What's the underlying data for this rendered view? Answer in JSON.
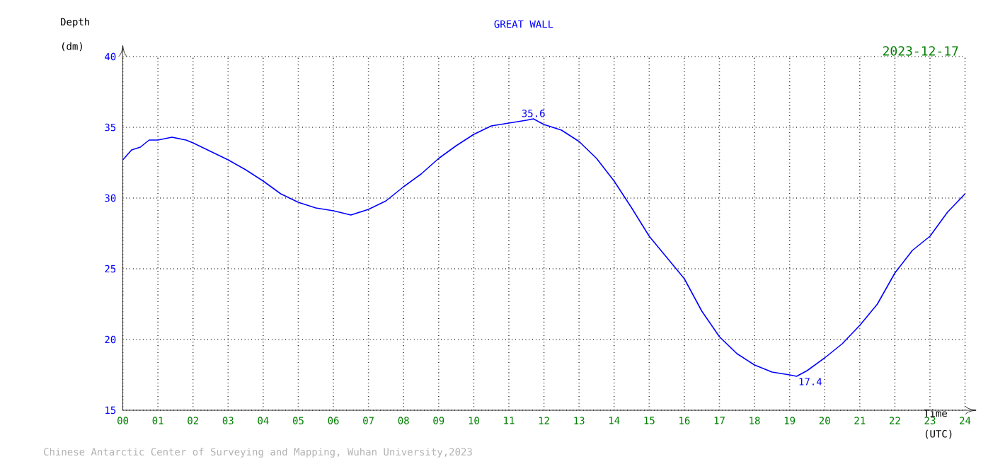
{
  "chart_data": {
    "type": "line",
    "title": "GREAT WALL",
    "xlabel": "Time",
    "ylabel": "Depth",
    "annotations": [
      "2023-12-17",
      "(dm)",
      "(UTC)",
      "Chinese Antarctic Center of Surveying and Mapping, Wuhan University,2023",
      {
        "text": "35.6",
        "x": 11.7,
        "y": 35.6
      },
      {
        "text": "17.4",
        "x": 19.2,
        "y": 17.4
      }
    ],
    "x": [
      0,
      0.25,
      0.5,
      0.75,
      1,
      1.4,
      1.8,
      2,
      2.5,
      3,
      3.5,
      4,
      4.5,
      5,
      5.5,
      6,
      6.5,
      7,
      7.5,
      8,
      8.5,
      9,
      9.5,
      10,
      10.5,
      11,
      11.5,
      11.7,
      12,
      12.5,
      13,
      13.5,
      14,
      14.5,
      15,
      15.5,
      16,
      16.5,
      17,
      17.5,
      18,
      18.5,
      19,
      19.2,
      19.5,
      20,
      20.5,
      21,
      21.5,
      22,
      22.5,
      23,
      23.5,
      24
    ],
    "series": [
      {
        "color": "#0000ff",
        "values": [
          32.7,
          33.4,
          33.6,
          34.1,
          34.1,
          34.3,
          34.1,
          33.9,
          33.3,
          32.7,
          32.0,
          31.2,
          30.3,
          29.7,
          29.3,
          29.1,
          28.8,
          29.2,
          29.8,
          30.8,
          31.7,
          32.8,
          33.7,
          34.5,
          35.1,
          35.3,
          35.5,
          35.6,
          35.2,
          34.8,
          34.0,
          32.8,
          31.2,
          29.3,
          27.3,
          25.8,
          24.3,
          22.0,
          20.2,
          19.0,
          18.2,
          17.7,
          17.5,
          17.4,
          17.8,
          18.7,
          19.7,
          21.0,
          22.5,
          24.7,
          26.3,
          27.3,
          29.0,
          30.3
        ]
      }
    ],
    "xlim": [
      0,
      24
    ],
    "ylim": [
      15,
      40
    ],
    "xticks": [
      {
        "value": 0,
        "label": "00"
      },
      {
        "value": 1,
        "label": "01"
      },
      {
        "value": 2,
        "label": "02"
      },
      {
        "value": 3,
        "label": "03"
      },
      {
        "value": 4,
        "label": "04"
      },
      {
        "value": 5,
        "label": "05"
      },
      {
        "value": 6,
        "label": "06"
      },
      {
        "value": 7,
        "label": "07"
      },
      {
        "value": 8,
        "label": "08"
      },
      {
        "value": 9,
        "label": "09"
      },
      {
        "value": 10,
        "label": "10"
      },
      {
        "value": 11,
        "label": "11"
      },
      {
        "value": 12,
        "label": "12"
      },
      {
        "value": 13,
        "label": "13"
      },
      {
        "value": 14,
        "label": "14"
      },
      {
        "value": 15,
        "label": "15"
      },
      {
        "value": 16,
        "label": "16"
      },
      {
        "value": 17,
        "label": "17"
      },
      {
        "value": 18,
        "label": "18"
      },
      {
        "value": 19,
        "label": "19"
      },
      {
        "value": 20,
        "label": "20"
      },
      {
        "value": 21,
        "label": "21"
      },
      {
        "value": 22,
        "label": "22"
      },
      {
        "value": 23,
        "label": "23"
      },
      {
        "value": 24,
        "label": "24"
      }
    ],
    "yticks": [
      15,
      20,
      25,
      30,
      35,
      40
    ],
    "grid": true,
    "marker": "none",
    "line_style": "solid"
  }
}
